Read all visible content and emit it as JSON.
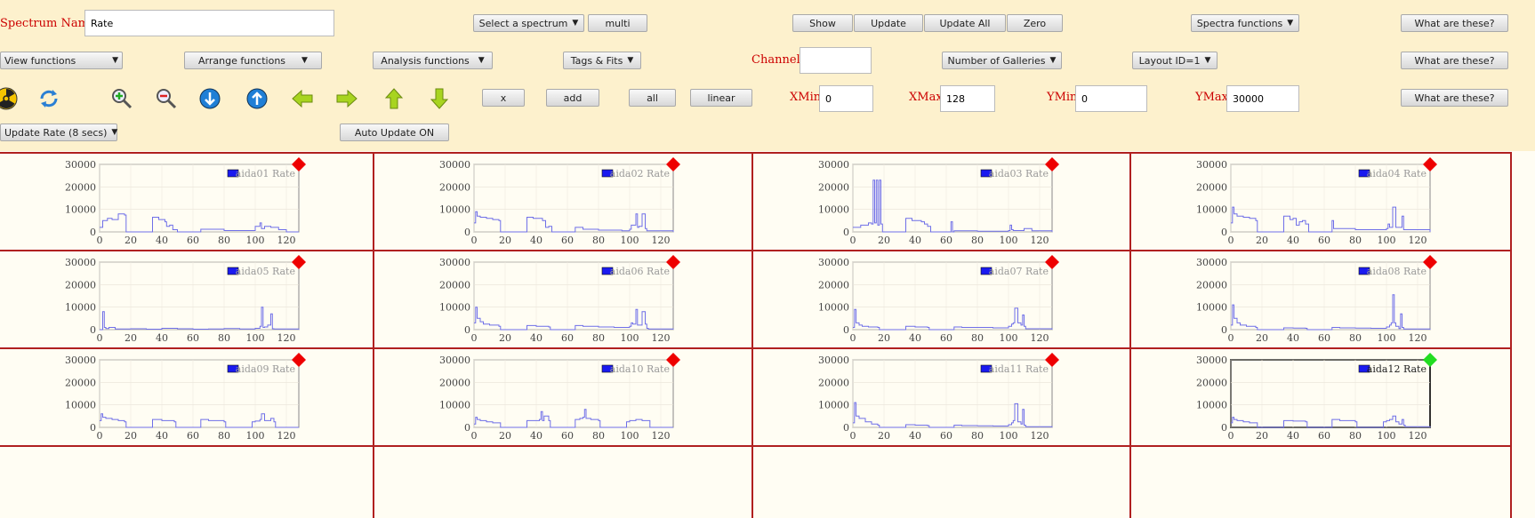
{
  "toolbar": {
    "spectrum_name_label": "Spectrum Name:",
    "spectrum_name_value": "Rate",
    "select_spectrum": "Select a spectrum",
    "multi": "multi",
    "show": "Show",
    "update": "Update",
    "update_all": "Update All",
    "zero": "Zero",
    "spectra_functions": "Spectra functions",
    "what_are_these": "What are these?",
    "view_functions": "View functions",
    "arrange_functions": "Arrange functions",
    "analysis_functions": "Analysis functions",
    "tags_fits": "Tags & Fits",
    "channel_label": "Channel:",
    "channel_value": "",
    "number_of_galleries": "Number of Galleries",
    "layout": "Layout ID=1",
    "x_btn": "x",
    "add_btn": "add",
    "all_btn": "all",
    "linear_btn": "linear",
    "xmin_label": "XMin",
    "xmin_value": "0",
    "xmax_label": "XMax",
    "xmax_value": "128",
    "ymin_label": "YMin",
    "ymin_value": "0",
    "ymax_label": "YMax",
    "ymax_value": "30000",
    "update_rate": "Update Rate (8 secs)",
    "auto_update": "Auto Update ON"
  },
  "icons": [
    "radiation-icon",
    "refresh-icon",
    "zoom-in-icon",
    "zoom-out-icon",
    "scroll-down-icon",
    "scroll-up-icon",
    "arrow-left-icon",
    "arrow-right-icon",
    "arrow-up-icon",
    "arrow-down-icon"
  ],
  "colors": {
    "accent_red": "#cc0000",
    "status_red": "#ee0000",
    "status_green": "#22dd22",
    "series": "#6f6fe8",
    "grid_border": "#b02020"
  },
  "plot_axes": {
    "y_ticks": [
      "30000",
      "20000",
      "10000",
      "0"
    ],
    "x_ticks": [
      "0",
      "20",
      "40",
      "60",
      "80",
      "100",
      "120"
    ],
    "xlim": [
      0,
      128
    ],
    "ylim": [
      0,
      30000
    ]
  },
  "chart_data": [
    {
      "type": "line",
      "legend": "aida01 Rate",
      "status": "red",
      "x": [
        0,
        2,
        5,
        8,
        12,
        16,
        17,
        33,
        34,
        38,
        42,
        43,
        45,
        47,
        50,
        64,
        65,
        80,
        100,
        103,
        104,
        106,
        110,
        115,
        120,
        128
      ],
      "y": [
        2000,
        5000,
        6000,
        5500,
        8000,
        7500,
        0,
        0,
        6500,
        5500,
        4500,
        2500,
        3000,
        1000,
        0,
        0,
        1200,
        600,
        2500,
        4000,
        1500,
        2500,
        2000,
        1000,
        0,
        0
      ]
    },
    {
      "type": "line",
      "legend": "aida02 Rate",
      "status": "red",
      "x": [
        0,
        1,
        2,
        4,
        8,
        12,
        16,
        17,
        33,
        34,
        38,
        44,
        46,
        48,
        50,
        64,
        65,
        70,
        80,
        95,
        100,
        101,
        104,
        105,
        106,
        108,
        110,
        111,
        128
      ],
      "y": [
        4000,
        9000,
        7000,
        6500,
        6000,
        5500,
        5000,
        0,
        0,
        6500,
        6000,
        5000,
        2000,
        2500,
        0,
        0,
        2000,
        1200,
        800,
        500,
        1200,
        3000,
        8000,
        2000,
        2500,
        8000,
        1500,
        500,
        0
      ]
    },
    {
      "type": "line",
      "legend": "aida03 Rate",
      "status": "red",
      "x": [
        0,
        5,
        10,
        12,
        13,
        14,
        15,
        16,
        17,
        18,
        19,
        33,
        34,
        38,
        44,
        46,
        48,
        50,
        62,
        63,
        64,
        65,
        80,
        100,
        101,
        102,
        103,
        110,
        115,
        128
      ],
      "y": [
        2000,
        3000,
        4000,
        3500,
        23000,
        4000,
        23000,
        3000,
        23000,
        3500,
        0,
        0,
        6000,
        5000,
        4500,
        3500,
        2500,
        0,
        0,
        4500,
        0,
        500,
        300,
        600,
        3000,
        1000,
        600,
        1500,
        500,
        0
      ]
    },
    {
      "type": "line",
      "legend": "aida04 Rate",
      "status": "red",
      "x": [
        0,
        1,
        2,
        4,
        8,
        12,
        16,
        17,
        33,
        34,
        38,
        40,
        42,
        44,
        46,
        48,
        50,
        64,
        65,
        66,
        80,
        100,
        101,
        102,
        104,
        106,
        110,
        111,
        128
      ],
      "y": [
        4000,
        11000,
        8000,
        7000,
        6500,
        6000,
        5000,
        0,
        0,
        7000,
        5500,
        6000,
        3000,
        4500,
        5000,
        3500,
        0,
        0,
        5000,
        1500,
        1000,
        1500,
        3500,
        2000,
        11000,
        2000,
        7000,
        1000,
        0
      ]
    },
    {
      "type": "line",
      "legend": "aida05 Rate",
      "status": "red",
      "x": [
        0,
        2,
        3,
        4,
        6,
        10,
        20,
        30,
        40,
        50,
        60,
        70,
        80,
        90,
        100,
        103,
        104,
        105,
        106,
        108,
        110,
        111,
        112,
        128
      ],
      "y": [
        0,
        8000,
        1000,
        500,
        1000,
        300,
        400,
        200,
        600,
        400,
        200,
        300,
        500,
        300,
        600,
        1500,
        10000,
        1000,
        1200,
        2000,
        7000,
        400,
        300,
        0
      ]
    },
    {
      "type": "line",
      "legend": "aida06 Rate",
      "status": "red",
      "x": [
        0,
        1,
        2,
        4,
        6,
        10,
        16,
        17,
        33,
        34,
        40,
        48,
        49,
        64,
        65,
        70,
        80,
        90,
        100,
        101,
        102,
        104,
        105,
        108,
        110,
        111,
        112,
        128
      ],
      "y": [
        3000,
        10000,
        5000,
        3500,
        2500,
        2000,
        1500,
        0,
        0,
        1800,
        1500,
        1200,
        0,
        0,
        1800,
        1500,
        1200,
        1000,
        1500,
        3000,
        2500,
        9000,
        2000,
        8000,
        2500,
        600,
        300,
        0
      ]
    },
    {
      "type": "line",
      "legend": "aida07 Rate",
      "status": "red",
      "x": [
        0,
        1,
        2,
        4,
        6,
        10,
        16,
        17,
        33,
        34,
        40,
        48,
        49,
        64,
        65,
        70,
        80,
        90,
        100,
        102,
        103,
        104,
        106,
        108,
        109,
        110,
        111,
        128
      ],
      "y": [
        1000,
        9000,
        3000,
        2000,
        1500,
        1200,
        1000,
        0,
        0,
        1500,
        1200,
        1000,
        0,
        0,
        1200,
        1000,
        1000,
        800,
        1500,
        2500,
        3000,
        9500,
        3000,
        2000,
        6500,
        1500,
        400,
        0
      ]
    },
    {
      "type": "line",
      "legend": "aida08 Rate",
      "status": "red",
      "x": [
        0,
        1,
        2,
        4,
        6,
        10,
        16,
        17,
        33,
        34,
        40,
        48,
        49,
        64,
        65,
        70,
        80,
        90,
        100,
        102,
        103,
        104,
        105,
        106,
        108,
        109,
        110,
        111,
        128
      ],
      "y": [
        2000,
        11000,
        5000,
        3000,
        2000,
        1500,
        1000,
        0,
        0,
        800,
        700,
        600,
        0,
        0,
        1000,
        800,
        700,
        600,
        1200,
        2000,
        3000,
        15500,
        3000,
        1500,
        500,
        7000,
        1000,
        300,
        0
      ]
    },
    {
      "type": "line",
      "legend": "aida09 Rate",
      "status": "red",
      "x": [
        0,
        1,
        2,
        4,
        8,
        12,
        16,
        17,
        33,
        34,
        40,
        48,
        49,
        64,
        65,
        70,
        80,
        81,
        97,
        98,
        100,
        103,
        104,
        106,
        110,
        112,
        113,
        128
      ],
      "y": [
        3000,
        6000,
        4500,
        4000,
        3500,
        3000,
        2500,
        0,
        0,
        3500,
        3000,
        2500,
        0,
        0,
        3500,
        3000,
        2500,
        0,
        0,
        2500,
        2800,
        3500,
        6000,
        3000,
        4000,
        2500,
        0,
        0
      ]
    },
    {
      "type": "line",
      "legend": "aida10 Rate",
      "status": "red",
      "x": [
        0,
        1,
        2,
        4,
        8,
        12,
        16,
        17,
        33,
        34,
        38,
        42,
        43,
        44,
        45,
        48,
        49,
        64,
        65,
        68,
        70,
        71,
        72,
        75,
        80,
        81,
        97,
        98,
        100,
        104,
        108,
        112,
        113,
        128
      ],
      "y": [
        1500,
        4500,
        3500,
        3000,
        2500,
        2000,
        2000,
        0,
        0,
        3000,
        3000,
        3500,
        7000,
        3000,
        5000,
        3000,
        0,
        0,
        3500,
        4000,
        4500,
        8000,
        4000,
        3500,
        3000,
        0,
        0,
        2500,
        3000,
        3500,
        3000,
        3000,
        0,
        0
      ]
    },
    {
      "type": "line",
      "legend": "aida11 Rate",
      "status": "red",
      "x": [
        0,
        1,
        2,
        4,
        8,
        12,
        16,
        17,
        33,
        34,
        40,
        48,
        49,
        64,
        65,
        70,
        80,
        90,
        100,
        102,
        103,
        104,
        106,
        108,
        109,
        110,
        111,
        128
      ],
      "y": [
        2000,
        11000,
        5000,
        4000,
        2500,
        1500,
        1000,
        0,
        0,
        1200,
        1000,
        800,
        0,
        0,
        1000,
        800,
        700,
        600,
        1200,
        2000,
        3000,
        10500,
        2500,
        1500,
        8000,
        1000,
        300,
        0
      ]
    },
    {
      "type": "line",
      "legend": "aida12 Rate",
      "status": "green",
      "x": [
        0,
        1,
        2,
        4,
        8,
        12,
        16,
        17,
        33,
        34,
        40,
        48,
        49,
        64,
        65,
        70,
        80,
        81,
        97,
        98,
        100,
        102,
        104,
        106,
        108,
        110,
        111,
        112,
        128
      ],
      "y": [
        2000,
        4500,
        3500,
        3000,
        2500,
        2000,
        2000,
        0,
        0,
        3000,
        2800,
        2500,
        0,
        0,
        3500,
        3000,
        2500,
        0,
        0,
        2500,
        3000,
        3500,
        5000,
        2500,
        1500,
        3500,
        1000,
        300,
        0
      ]
    }
  ]
}
